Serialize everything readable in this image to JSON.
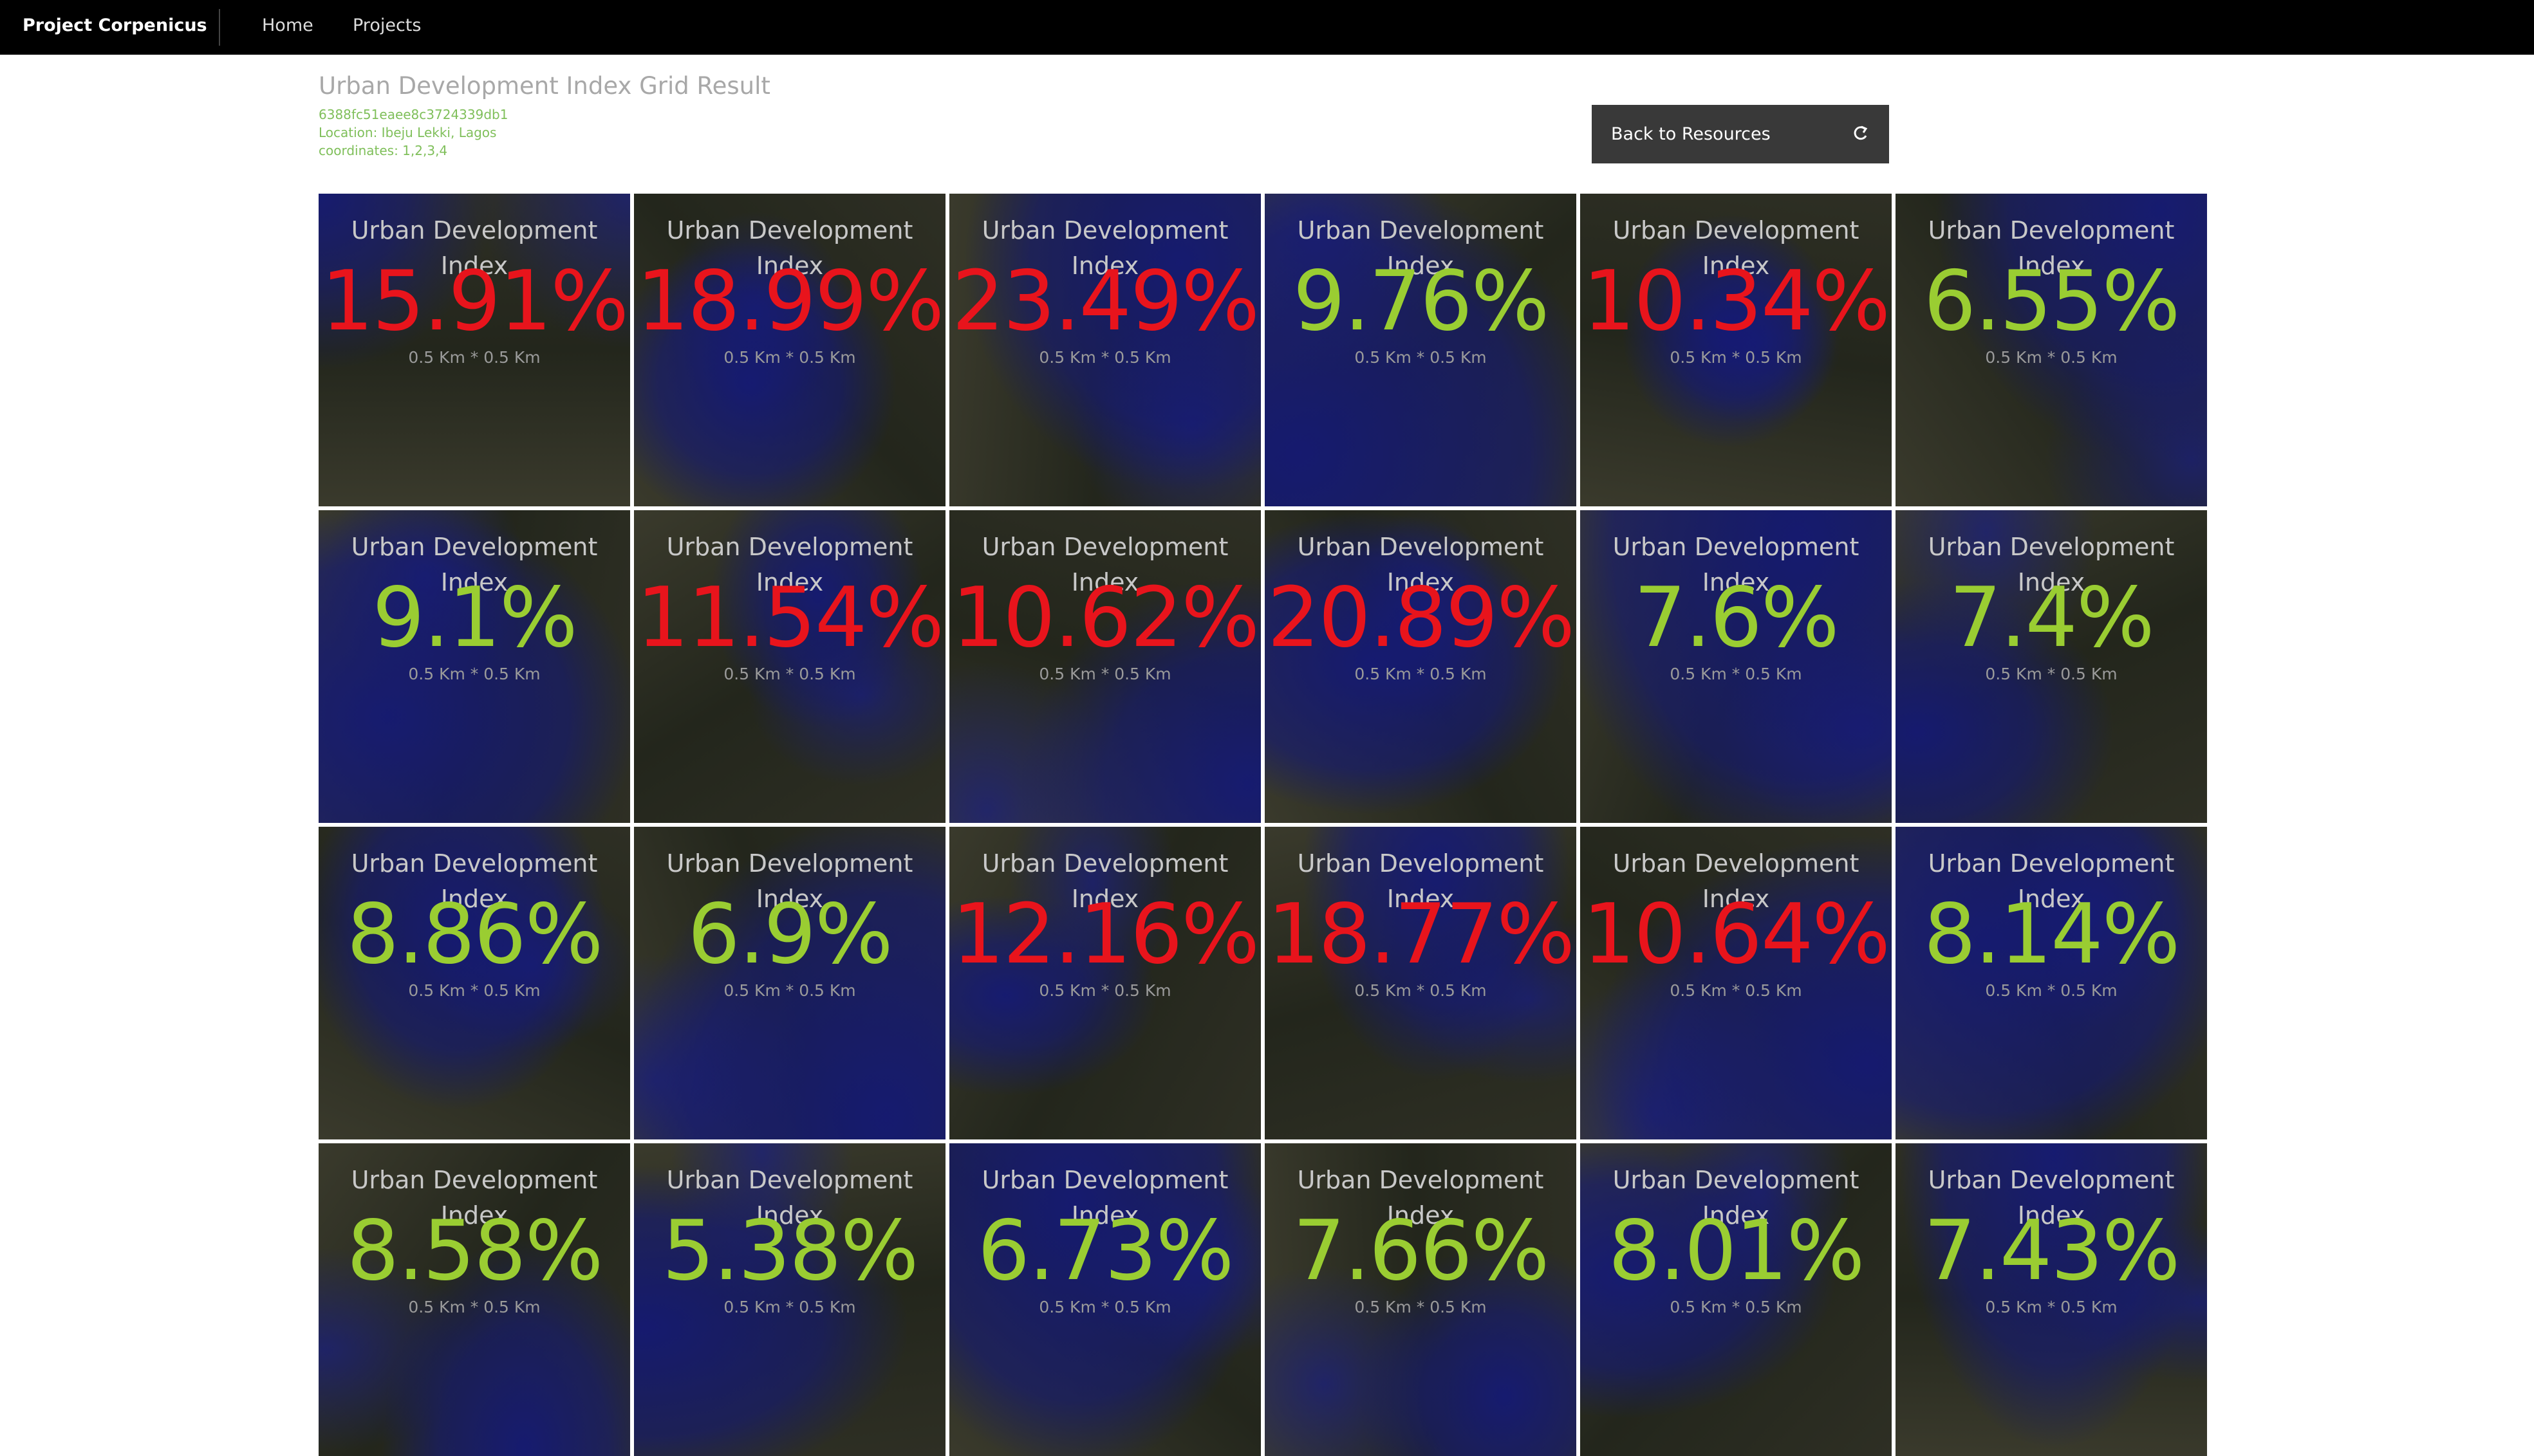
{
  "header": {
    "brand": "Project Corpenicus",
    "nav": [
      "Home",
      "Projects"
    ]
  },
  "page": {
    "title": "Urban Development Index Grid Result",
    "id": "6388fc51eaee8c3724339db1",
    "location": "Location: Ibeju Lekki, Lagos",
    "coordinates": "coordinates: 1,2,3,4",
    "button": "Back to Resources"
  },
  "grid": {
    "tiles": [
      {
        "label": "Urban Development Index",
        "value": "15.91%",
        "size": "0.5 Km * 0.5 Km",
        "color": "#e8141c"
      },
      {
        "label": "Urban Development Index",
        "value": "18.99%",
        "size": "0.5 Km * 0.5 Km",
        "color": "#e8141c"
      },
      {
        "label": "Urban Development Index",
        "value": "23.49%",
        "size": "0.5 Km * 0.5 Km",
        "color": "#e8141c"
      },
      {
        "label": "Urban Development Index",
        "value": "9.76%",
        "size": "0.5 Km * 0.5 Km",
        "color": "#9acd32"
      },
      {
        "label": "Urban Development Index",
        "value": "10.34%",
        "size": "0.5 Km * 0.5 Km",
        "color": "#e8141c"
      },
      {
        "label": "Urban Development Index",
        "value": "6.55%",
        "size": "0.5 Km * 0.5 Km",
        "color": "#9acd32"
      },
      {
        "label": "Urban Development Index",
        "value": "9.1%",
        "size": "0.5 Km * 0.5 Km",
        "color": "#9acd32"
      },
      {
        "label": "Urban Development Index",
        "value": "11.54%",
        "size": "0.5 Km * 0.5 Km",
        "color": "#e8141c"
      },
      {
        "label": "Urban Development Index",
        "value": "10.62%",
        "size": "0.5 Km * 0.5 Km",
        "color": "#e8141c"
      },
      {
        "label": "Urban Development Index",
        "value": "20.89%",
        "size": "0.5 Km * 0.5 Km",
        "color": "#e8141c"
      },
      {
        "label": "Urban Development Index",
        "value": "7.6%",
        "size": "0.5 Km * 0.5 Km",
        "color": "#9acd32"
      },
      {
        "label": "Urban Development Index",
        "value": "7.4%",
        "size": "0.5 Km * 0.5 Km",
        "color": "#9acd32"
      },
      {
        "label": "Urban Development Index",
        "value": "8.86%",
        "size": "0.5 Km * 0.5 Km",
        "color": "#9acd32"
      },
      {
        "label": "Urban Development Index",
        "value": "6.9%",
        "size": "0.5 Km * 0.5 Km",
        "color": "#9acd32"
      },
      {
        "label": "Urban Development Index",
        "value": "12.16%",
        "size": "0.5 Km * 0.5 Km",
        "color": "#e8141c"
      },
      {
        "label": "Urban Development Index",
        "value": "18.77%",
        "size": "0.5 Km * 0.5 Km",
        "color": "#e8141c"
      },
      {
        "label": "Urban Development Index",
        "value": "10.64%",
        "size": "0.5 Km * 0.5 Km",
        "color": "#e8141c"
      },
      {
        "label": "Urban Development Index",
        "value": "8.14%",
        "size": "0.5 Km * 0.5 Km",
        "color": "#9acd32"
      },
      {
        "label": "Urban Development Index",
        "value": "8.58%",
        "size": "0.5 Km * 0.5 Km",
        "color": "#9acd32"
      },
      {
        "label": "Urban Development Index",
        "value": "5.38%",
        "size": "0.5 Km * 0.5 Km",
        "color": "#9acd32"
      },
      {
        "label": "Urban Development Index",
        "value": "6.73%",
        "size": "0.5 Km * 0.5 Km",
        "color": "#9acd32"
      },
      {
        "label": "Urban Development Index",
        "value": "7.66%",
        "size": "0.5 Km * 0.5 Km",
        "color": "#9acd32"
      },
      {
        "label": "Urban Development Index",
        "value": "8.01%",
        "size": "0.5 Km * 0.5 Km",
        "color": "#9acd32"
      },
      {
        "label": "Urban Development Index",
        "value": "7.43%",
        "size": "0.5 Km * 0.5 Km",
        "color": "#9acd32"
      }
    ]
  }
}
